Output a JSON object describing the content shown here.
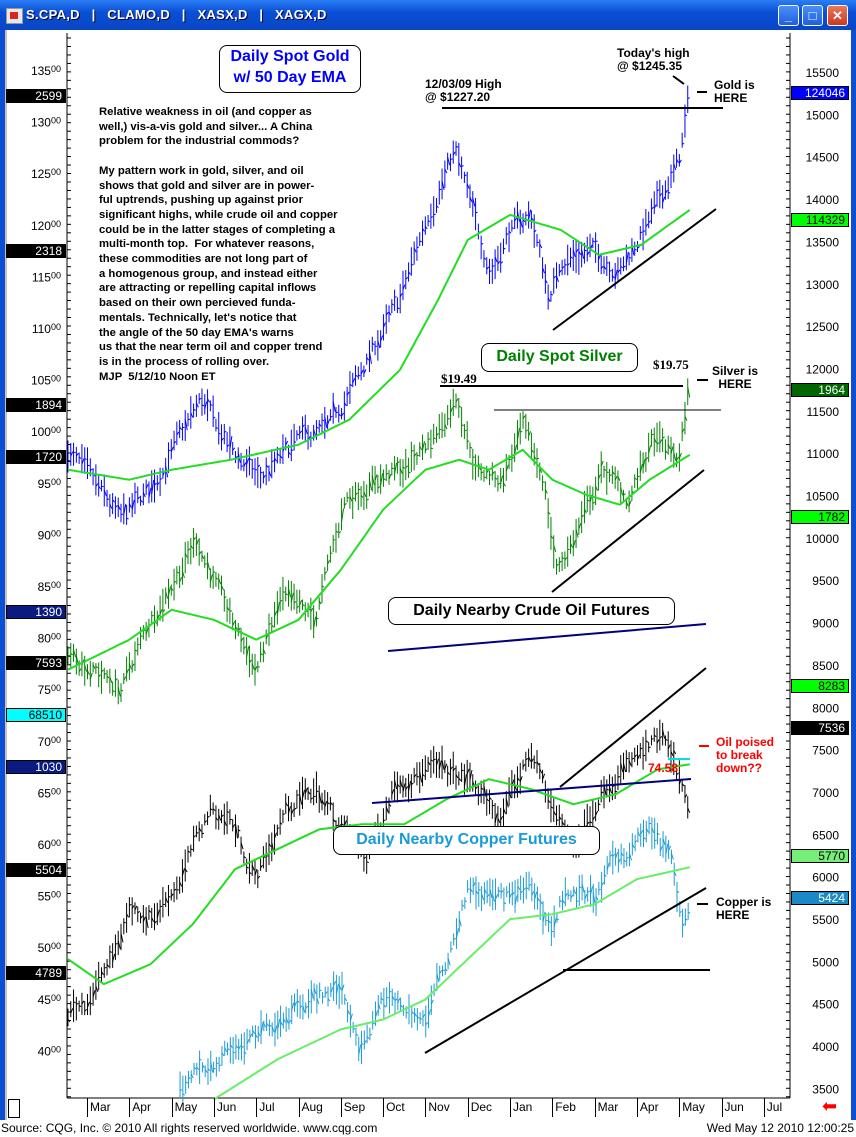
{
  "window": {
    "title": "S.CPA,D   |   CLAMO,D   |   XASX,D   |   XAGX,D",
    "minimize_label": "_",
    "maximize_label": "□",
    "close_label": "✕"
  },
  "footer": {
    "source": "Source: CQG, Inc. © 2010 All rights reserved worldwide. www.cqg.com",
    "timestamp": "Wed May 12 2010 12:00:25"
  },
  "commentary": "Relative weakness in oil (and copper as\nwell,) vis-a-vis gold and silver... A China\nproblem for the industrial commods?\n\nMy pattern work in gold, silver, and oil\nshows that gold and silver are in power-\nful uptrends, pushing up against prior\nsignificant highs, while crude oil and copper\ncould be in the latter stages of completing a\nmulti-month top.  For whatever reasons,\nthese commodities are not long part of\na homogenous group, and instead either\nare attracting or repelling capital inflows\nbased on their own percieved funda-\nmentals. Technically, let's notice that\nthe angle of the 50 day EMA's warns\nus that the near term oil and copper trend\nis in the process of rolling over.\nMJP  5/12/10 Noon ET",
  "colors": {
    "gold": "#0000ff",
    "silver": "#008000",
    "oil": "#000000",
    "copper": "#1a9ad6",
    "ema": "#22dd22",
    "copper_ema": "#66ee66",
    "trend": "#000000",
    "channel": "#000080",
    "red": "#ff0000"
  },
  "chart_data": {
    "type": "line",
    "title": "Daily Spot Gold w/ 50 Day EMA",
    "x_axis": {
      "labels": [
        "Mar",
        "Apr",
        "May",
        "Jun",
        "Jul",
        "Aug",
        "Sep",
        "Oct",
        "Nov",
        "Dec",
        "Jan",
        "Feb",
        "Mar",
        "Apr",
        "May",
        "Jun",
        "Jul"
      ]
    },
    "left_axis": {
      "labels": [
        "13500",
        "13000",
        "12500",
        "12000",
        "11500",
        "11000",
        "10500",
        "10000",
        "9500",
        "9000",
        "8500",
        "8000",
        "7500",
        "7000",
        "6500",
        "6000",
        "5500",
        "5000",
        "4500",
        "4000"
      ]
    },
    "right_axis": {
      "range": [
        3500,
        15500
      ],
      "labels": [
        "15500",
        "15000",
        "14500",
        "14000",
        "13500",
        "13000",
        "12500",
        "12000",
        "11500",
        "11000",
        "10500",
        "10000",
        "9500",
        "9000",
        "8500",
        "8000",
        "7500",
        "7000",
        "6500",
        "6000",
        "5500",
        "5000",
        "4500",
        "4000",
        "3500"
      ]
    },
    "left_tags": [
      {
        "text": "2599",
        "bg": "#000000",
        "fg": "#ffffff"
      },
      {
        "text": "2318",
        "bg": "#000000",
        "fg": "#ffffff"
      },
      {
        "text": "1894",
        "bg": "#000000",
        "fg": "#ffffff"
      },
      {
        "text": "1720",
        "bg": "#000000",
        "fg": "#ffffff"
      },
      {
        "text": "1390",
        "bg": "#0a1a80",
        "fg": "#ffffff"
      },
      {
        "text": "7593",
        "bg": "#000000",
        "fg": "#ffffff"
      },
      {
        "text": "68510",
        "bg": "#00ffff",
        "fg": "#000000"
      },
      {
        "text": "1030",
        "bg": "#0a1a80",
        "fg": "#ffffff"
      },
      {
        "text": "5504",
        "bg": "#000000",
        "fg": "#ffffff"
      },
      {
        "text": "4789",
        "bg": "#000000",
        "fg": "#ffffff"
      }
    ],
    "right_tags": [
      {
        "text": "124046",
        "bg": "#0000ff",
        "fg": "#ffffff"
      },
      {
        "text": "114329",
        "bg": "#00ff00",
        "fg": "#000000"
      },
      {
        "text": "1964",
        "bg": "#006600",
        "fg": "#ffffff"
      },
      {
        "text": "1782",
        "bg": "#00ff00",
        "fg": "#000000"
      },
      {
        "text": "8283",
        "bg": "#00ff00",
        "fg": "#000000"
      },
      {
        "text": "7536",
        "bg": "#000000",
        "fg": "#ffffff"
      },
      {
        "text": "5770",
        "bg": "#77ee77",
        "fg": "#000000"
      },
      {
        "text": "5424",
        "bg": "#1a8ac6",
        "fg": "#ffffff"
      }
    ],
    "x_unit": "months since Mar 2009",
    "series": [
      {
        "name": "Daily Spot Gold",
        "kind": "bars",
        "color": "gold",
        "points": [
          [
            -0.45,
            11040
          ],
          [
            0.8,
            10214
          ],
          [
            1.5,
            10568
          ],
          [
            2.7,
            11630
          ],
          [
            3.4,
            11040
          ],
          [
            4.1,
            10686
          ],
          [
            5.0,
            11158
          ],
          [
            5.7,
            11276
          ],
          [
            6.5,
            11984
          ],
          [
            7.4,
            12810
          ],
          [
            8.1,
            13872
          ],
          [
            8.7,
            14580
          ],
          [
            9.3,
            13518
          ],
          [
            9.55,
            13164
          ],
          [
            10.0,
            13636
          ],
          [
            10.5,
            13813
          ],
          [
            10.95,
            12810
          ],
          [
            11.2,
            13282
          ],
          [
            11.9,
            13400
          ],
          [
            12.6,
            13164
          ],
          [
            13.3,
            13754
          ],
          [
            14.0,
            14462
          ],
          [
            14.25,
            15229
          ]
        ]
      },
      {
        "name": "Gold 50 Day EMA",
        "kind": "line",
        "color": "ema",
        "points": [
          [
            -0.45,
            10804
          ],
          [
            1.0,
            10686
          ],
          [
            2.0,
            10804
          ],
          [
            3.4,
            10922
          ],
          [
            5.0,
            11100
          ],
          [
            6.2,
            11395
          ],
          [
            7.4,
            11984
          ],
          [
            8.3,
            12810
          ],
          [
            9.0,
            13518
          ],
          [
            10.0,
            13813
          ],
          [
            11.2,
            13636
          ],
          [
            12.1,
            13341
          ],
          [
            13.1,
            13459
          ],
          [
            14.25,
            13872
          ]
        ]
      },
      {
        "name": "Daily Spot Silver",
        "kind": "bars",
        "color": "silver",
        "points": [
          [
            -0.45,
            8680
          ],
          [
            0.8,
            8207
          ],
          [
            1.5,
            9033
          ],
          [
            2.6,
            9977
          ],
          [
            3.4,
            9033
          ],
          [
            4.0,
            8443
          ],
          [
            4.6,
            9270
          ],
          [
            5.4,
            9033
          ],
          [
            6.1,
            10450
          ],
          [
            6.8,
            10686
          ],
          [
            7.5,
            10804
          ],
          [
            8.3,
            11276
          ],
          [
            8.75,
            11690
          ],
          [
            9.2,
            10804
          ],
          [
            9.8,
            10686
          ],
          [
            10.3,
            11276
          ],
          [
            10.8,
            10686
          ],
          [
            11.1,
            9623
          ],
          [
            11.5,
            9977
          ],
          [
            12.2,
            10804
          ],
          [
            12.8,
            10450
          ],
          [
            13.4,
            11158
          ],
          [
            14.0,
            10922
          ],
          [
            14.25,
            11866
          ]
        ]
      },
      {
        "name": "Silver 50 Day EMA",
        "kind": "line",
        "color": "ema",
        "points": [
          [
            -0.45,
            8443
          ],
          [
            1,
            8797
          ],
          [
            2,
            9151
          ],
          [
            3,
            9033
          ],
          [
            4,
            8797
          ],
          [
            5,
            9033
          ],
          [
            6,
            9623
          ],
          [
            7,
            10332
          ],
          [
            8,
            10804
          ],
          [
            8.8,
            10922
          ],
          [
            9.5,
            10804
          ],
          [
            10.3,
            11040
          ],
          [
            11,
            10686
          ],
          [
            11.8,
            10509
          ],
          [
            12.6,
            10391
          ],
          [
            13.3,
            10686
          ],
          [
            14.25,
            10981
          ]
        ]
      },
      {
        "name": "Daily Nearby Crude Oil Futures",
        "kind": "bars",
        "color": "oil",
        "points": [
          [
            -0.45,
            4400
          ],
          [
            0,
            4554
          ],
          [
            0.6,
            5026
          ],
          [
            1,
            5616
          ],
          [
            1.6,
            5557
          ],
          [
            2.2,
            5970
          ],
          [
            2.9,
            6796
          ],
          [
            3.4,
            6678
          ],
          [
            4,
            5970
          ],
          [
            4.7,
            6796
          ],
          [
            5.4,
            7032
          ],
          [
            5.9,
            6678
          ],
          [
            6.6,
            6206
          ],
          [
            7.3,
            7150
          ],
          [
            8.2,
            7268
          ],
          [
            9,
            7150
          ],
          [
            9.8,
            6678
          ],
          [
            10.5,
            7504
          ],
          [
            11,
            6796
          ],
          [
            11.5,
            6324
          ],
          [
            12.3,
            7150
          ],
          [
            13,
            7386
          ],
          [
            13.6,
            7622
          ],
          [
            14,
            7150
          ],
          [
            14.25,
            6619
          ]
        ]
      },
      {
        "name": "Oil 50 Day EMA",
        "kind": "line",
        "color": "ema",
        "points": [
          [
            -0.45,
            5026
          ],
          [
            0.4,
            4731
          ],
          [
            1.5,
            4966
          ],
          [
            2.5,
            5438
          ],
          [
            3.5,
            6088
          ],
          [
            4.5,
            6324
          ],
          [
            5.5,
            6560
          ],
          [
            6.5,
            6619
          ],
          [
            7.5,
            6619
          ],
          [
            8.5,
            6914
          ],
          [
            9.5,
            7150
          ],
          [
            10.5,
            7032
          ],
          [
            11.5,
            6855
          ],
          [
            12.5,
            6973
          ],
          [
            13.5,
            7268
          ],
          [
            14.25,
            7327
          ]
        ]
      },
      {
        "name": "Daily Nearby Copper Futures",
        "kind": "bars",
        "color": "copper",
        "points": [
          [
            2.2,
            3488
          ],
          [
            3,
            3842
          ],
          [
            4,
            4078
          ],
          [
            5,
            4550
          ],
          [
            6,
            4668
          ],
          [
            6.5,
            3960
          ],
          [
            7,
            4550
          ],
          [
            8,
            4314
          ],
          [
            8.5,
            5026
          ],
          [
            9,
            5852
          ],
          [
            9.8,
            5734
          ],
          [
            10.5,
            5852
          ],
          [
            11,
            5380
          ],
          [
            11.3,
            5852
          ],
          [
            12,
            5734
          ],
          [
            12.5,
            6206
          ],
          [
            13.3,
            6560
          ],
          [
            13.8,
            6206
          ],
          [
            14.1,
            5380
          ],
          [
            14.25,
            5734
          ]
        ]
      },
      {
        "name": "Copper 50 Day EMA",
        "kind": "line",
        "color": "copper_ema",
        "points": [
          [
            3,
            3370
          ],
          [
            4.5,
            3842
          ],
          [
            6,
            4196
          ],
          [
            7,
            4314
          ],
          [
            8,
            4550
          ],
          [
            9,
            5026
          ],
          [
            10,
            5498
          ],
          [
            11,
            5557
          ],
          [
            12,
            5675
          ],
          [
            13,
            5970
          ],
          [
            14.25,
            6111
          ]
        ]
      }
    ],
    "annotations": {
      "gold_title": "Daily Spot Gold\nw/ 50 Day EMA",
      "gold_prior_high": "12/03/09 High\n@ $1227.20",
      "gold_today_high": "Today's high\n@ $1245.35",
      "gold_here": "Gold is\nHERE",
      "silver_title": "Daily Spot Silver",
      "silver_prior_high": "$19.49",
      "silver_today_high": "$19.75",
      "silver_here": "Silver is\nHERE",
      "oil_title": "Daily Nearby Crude Oil Futures",
      "oil_level": "74.58",
      "oil_note": "Oil poised\nto break\ndown??",
      "copper_title": "Daily Nearby Copper Futures",
      "copper_here": "Copper is\nHERE"
    }
  }
}
